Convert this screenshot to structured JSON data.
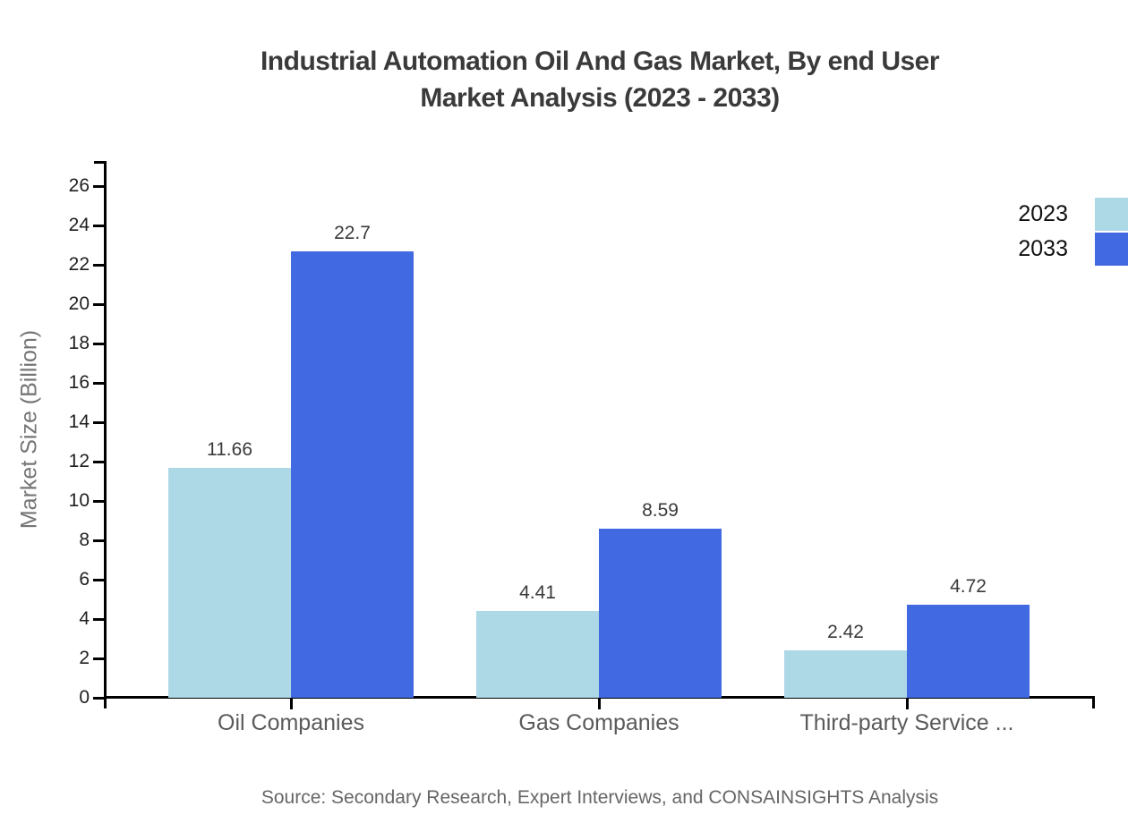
{
  "title": {
    "line1": "Industrial Automation Oil And Gas Market, By end User",
    "line2": "Market Analysis (2023 - 2033)"
  },
  "source": "Source: Secondary Research, Expert Interviews, and CONSAINSIGHTS Analysis",
  "colors": {
    "series_2023": "#ADD8E6",
    "series_2033": "#4169E1",
    "axis": "#000000",
    "title_text": "#3a3a3a",
    "category_text": "#5a5a5a",
    "ylabel_text": "#757575",
    "source_text": "#666666"
  },
  "chart_data": {
    "type": "bar",
    "title": "Industrial Automation Oil And Gas Market, By end User Market Analysis (2023 - 2033)",
    "categories": [
      "Oil Companies",
      "Gas Companies",
      "Third-party Service ..."
    ],
    "series": [
      {
        "name": "2023",
        "color": "#ADD8E6",
        "values": [
          11.66,
          4.41,
          2.42
        ]
      },
      {
        "name": "2033",
        "color": "#4169E1",
        "values": [
          22.7,
          8.59,
          4.72
        ]
      }
    ],
    "xlabel": "",
    "ylabel": "Market Size (Billion)",
    "ylim": [
      0,
      26
    ],
    "yticks": [
      0,
      2,
      4,
      6,
      8,
      10,
      12,
      14,
      16,
      18,
      20,
      22,
      24,
      26
    ],
    "grid": false,
    "legend_position": "right",
    "value_labels": true
  }
}
